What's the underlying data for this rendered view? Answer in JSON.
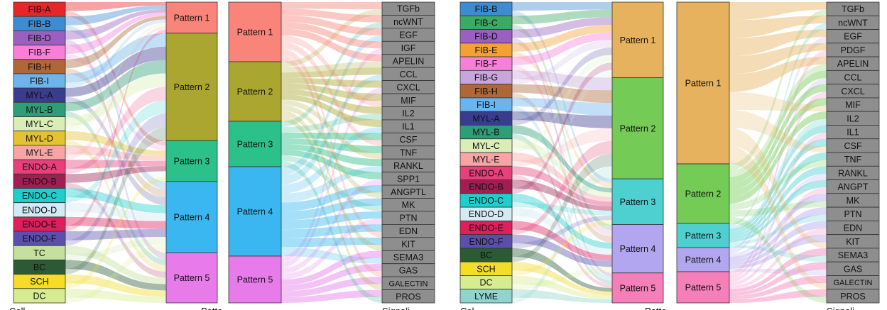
{
  "figure": {
    "footer_fragments": [
      "Cell",
      "Patte",
      "Signali",
      "Cel",
      "Patte",
      "Signali"
    ]
  },
  "panels": [
    {
      "name": "left",
      "cells": [
        {
          "label": "FIB-A",
          "color": "#E8262A"
        },
        {
          "label": "FIB-B",
          "color": "#3E8BD0"
        },
        {
          "label": "FIB-D",
          "color": "#9A5FC0"
        },
        {
          "label": "FIB-F",
          "color": "#F77FD8"
        },
        {
          "label": "FIB-H",
          "color": "#AE6838"
        },
        {
          "label": "FIB-I",
          "color": "#6BB4EE"
        },
        {
          "label": "MYL-A",
          "color": "#3A3C8E"
        },
        {
          "label": "MYL-B",
          "color": "#2E9E78"
        },
        {
          "label": "MYL-C",
          "color": "#D8EEB6"
        },
        {
          "label": "MYL-D",
          "color": "#E4C232"
        },
        {
          "label": "MYL-E",
          "color": "#F6A4A4"
        },
        {
          "label": "ENDO-A",
          "color": "#E8407A"
        },
        {
          "label": "ENDO-B",
          "color": "#A01E52"
        },
        {
          "label": "ENDO-C",
          "color": "#1ECFCE"
        },
        {
          "label": "ENDO-D",
          "color": "#D2EAF4"
        },
        {
          "label": "ENDO-E",
          "color": "#E01E5C"
        },
        {
          "label": "ENDO-F",
          "color": "#5B4FAE"
        },
        {
          "label": "TC",
          "color": "#C3E09E"
        },
        {
          "label": "BC",
          "color": "#2B5A35"
        },
        {
          "label": "SCH",
          "color": "#F4DC28"
        },
        {
          "label": "DC",
          "color": "#D6EC90"
        }
      ],
      "patterns_a": [
        {
          "label": "Pattern 1",
          "color": "#F8847A"
        },
        {
          "label": "Pattern 2",
          "color": "#ABA630"
        },
        {
          "label": "Pattern 3",
          "color": "#2CC08A"
        },
        {
          "label": "Pattern 4",
          "color": "#3AB7F0"
        },
        {
          "label": "Pattern 5",
          "color": "#E77BEA"
        }
      ],
      "patterns_b": [
        {
          "label": "Pattern 1",
          "color": "#F8847A"
        },
        {
          "label": "Pattern 2",
          "color": "#ABA630"
        },
        {
          "label": "Pattern 3",
          "color": "#2CC08A"
        },
        {
          "label": "Pattern 4",
          "color": "#3AB7F0"
        },
        {
          "label": "Pattern 5",
          "color": "#E77BEA"
        }
      ],
      "signals": [
        "TGFb",
        "ncWNT",
        "EGF",
        "IGF",
        "APELIN",
        "CCL",
        "CXCL",
        "MIF",
        "IL2",
        "IL1",
        "CSF",
        "TNF",
        "RANKL",
        "SPP1",
        "ANGPTL",
        "MK",
        "PTN",
        "EDN",
        "KIT",
        "SEMA3",
        "GAS",
        "GALECTIN",
        "PROS"
      ]
    },
    {
      "name": "right",
      "cells": [
        {
          "label": "FIB-B",
          "color": "#3E8BD0"
        },
        {
          "label": "FIB-C",
          "color": "#3DAA64"
        },
        {
          "label": "FIB-D",
          "color": "#9A5FC0"
        },
        {
          "label": "FIB-E",
          "color": "#F5A032"
        },
        {
          "label": "FIB-F",
          "color": "#F77FD8"
        },
        {
          "label": "FIB-G",
          "color": "#C8A6DC"
        },
        {
          "label": "FIB-H",
          "color": "#AE6838"
        },
        {
          "label": "FIB-I",
          "color": "#6BB4EE"
        },
        {
          "label": "MYL-A",
          "color": "#3A3C8E"
        },
        {
          "label": "MYL-B",
          "color": "#2E9E78"
        },
        {
          "label": "MYL-C",
          "color": "#D8EEB6"
        },
        {
          "label": "MYL-E",
          "color": "#F6A4A4"
        },
        {
          "label": "ENDO-A",
          "color": "#E8407A"
        },
        {
          "label": "ENDO-B",
          "color": "#A01E52"
        },
        {
          "label": "ENDO-C",
          "color": "#1ECFCE"
        },
        {
          "label": "ENDO-D",
          "color": "#D2EAF4"
        },
        {
          "label": "ENDO-E",
          "color": "#E01E5C"
        },
        {
          "label": "ENDO-F",
          "color": "#5B4FAE"
        },
        {
          "label": "BC",
          "color": "#2B5A35"
        },
        {
          "label": "SCH",
          "color": "#F4DC28"
        },
        {
          "label": "DC",
          "color": "#D6EC90"
        },
        {
          "label": "LYME",
          "color": "#8FD4CE"
        }
      ],
      "patterns_a": [
        {
          "label": "Pattern 1",
          "color": "#E6B25E"
        },
        {
          "label": "Pattern 2",
          "color": "#74CB56"
        },
        {
          "label": "Pattern 3",
          "color": "#4FD0D0"
        },
        {
          "label": "Pattern 4",
          "color": "#B3A6F0"
        },
        {
          "label": "Pattern 5",
          "color": "#F57FB8"
        }
      ],
      "patterns_b": [
        {
          "label": "Pattern 1",
          "color": "#E6B25E"
        },
        {
          "label": "Pattern 2",
          "color": "#74CB56"
        },
        {
          "label": "Pattern 3",
          "color": "#4FD0D0"
        },
        {
          "label": "Pattern 4",
          "color": "#B3A6F0"
        },
        {
          "label": "Pattern 5",
          "color": "#F57FB8"
        }
      ],
      "signals": [
        "TGFb",
        "ncWNT",
        "EGF",
        "PDGF",
        "APELIN",
        "CCL",
        "CXCL",
        "MIF",
        "IL2",
        "IL1",
        "CSF",
        "TNF",
        "RANKL",
        "ANGPT",
        "MK",
        "PTN",
        "EDN",
        "KIT",
        "SEMA3",
        "GAS",
        "GALECTIN",
        "PROS"
      ]
    }
  ]
}
